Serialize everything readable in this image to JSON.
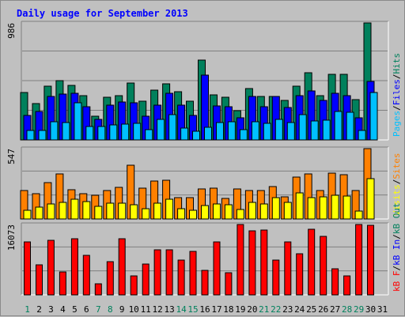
{
  "chart_data": {
    "type": "bar",
    "title": "Daily usage for September 2013",
    "categories": [
      "1",
      "2",
      "3",
      "4",
      "5",
      "6",
      "7",
      "8",
      "9",
      "10",
      "11",
      "12",
      "13",
      "14",
      "15",
      "16",
      "17",
      "18",
      "19",
      "20",
      "21",
      "22",
      "23",
      "24",
      "25",
      "26",
      "27",
      "28",
      "29",
      "30",
      "31"
    ],
    "weekend_days": [
      "1",
      "7",
      "8",
      "14",
      "15",
      "21",
      "22",
      "28",
      "29"
    ],
    "panels": [
      {
        "id": "hits",
        "ymax_label": "986",
        "ymax": 986,
        "right_labels": [
          "Pages",
          "/",
          "Files",
          "/",
          "Hits"
        ],
        "series": [
          {
            "name": "Hits",
            "color": "#00805c",
            "values": [
              400,
              308,
              453,
              498,
              461,
              375,
              200,
              360,
              371,
              483,
              327,
              421,
              475,
              405,
              324,
              674,
              382,
              361,
              246,
              432,
              365,
              368,
              334,
              456,
              563,
              375,
              553,
              555,
              337,
              986,
              0
            ]
          },
          {
            "name": "Files",
            "color": "#0000ff",
            "values": [
              206,
              241,
              368,
              388,
              391,
              280,
              171,
              293,
              319,
              316,
              197,
              296,
              394,
              294,
              205,
              543,
              287,
              282,
              188,
              367,
              283,
              367,
              270,
              372,
              413,
              335,
              394,
              376,
              187,
              492,
              0
            ]
          },
          {
            "name": "Pages",
            "color": "#00c0ff",
            "values": [
              80,
              80,
              153,
              147,
              314,
              114,
              114,
              128,
              130,
              138,
              88,
              172,
              211,
              99,
              72,
              109,
              145,
              156,
              89,
              151,
              137,
              175,
              144,
              216,
              161,
              166,
              240,
              231,
              82,
              403,
              0
            ]
          }
        ]
      },
      {
        "id": "visits",
        "ymax_label": "547",
        "ymax": 547,
        "right_labels": [
          "Visits",
          "/",
          "Sites"
        ],
        "series": [
          {
            "name": "Sites",
            "color": "#ff8000",
            "values": [
              220,
              196,
              283,
              353,
              230,
              198,
              183,
              224,
              246,
              415,
              237,
              297,
              302,
              166,
              168,
              232,
              237,
              157,
              233,
              220,
              224,
              249,
              173,
              324,
              350,
              219,
              356,
              344,
              221,
              547,
              0
            ]
          },
          {
            "name": "Visits",
            "color": "#ffff00",
            "values": [
              69,
              95,
              117,
              132,
              155,
              138,
              99,
              120,
              121,
              112,
              77,
              124,
              152,
              80,
              68,
              102,
              117,
              112,
              71,
              128,
              117,
              164,
              132,
              200,
              167,
              172,
              185,
              178,
              64,
              312,
              0
            ]
          }
        ]
      },
      {
        "id": "kbytes",
        "ymax_label": "16073",
        "ymax": 16073,
        "right_labels": [
          "kB F",
          "/",
          "kB In",
          "/",
          "kB Out"
        ],
        "series": [
          {
            "name": "kB F",
            "color": "#ff0000",
            "values": [
              12086,
              6855,
              12424,
              5147,
              12750,
              9004,
              2545,
              7546,
              12750,
              4290,
              7012,
              10291,
              10291,
              7889,
              9861,
              5662,
              12073,
              4983,
              16073,
              14569,
              14862,
              7889,
              12073,
              9347,
              14912,
              13433,
              6003,
              4290,
              16073,
              15855,
              0
            ]
          }
        ]
      }
    ]
  }
}
